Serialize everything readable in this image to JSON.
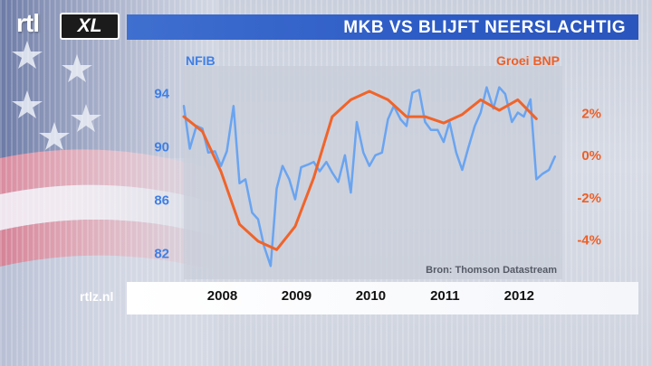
{
  "title": "MKB VS BLIJFT NEERSLACHTIG",
  "site": "rtlz.nl",
  "logo": {
    "rtl": "rtl",
    "xl": "XL"
  },
  "chart_data": {
    "type": "line",
    "x_tick_labels": [
      "2008",
      "2009",
      "2010",
      "2011",
      "2012"
    ],
    "x_ticks": [
      2008,
      2009,
      2010,
      2011,
      2012
    ],
    "xlim": [
      2007.75,
      2012.85
    ],
    "left_axis": {
      "label": "NFIB",
      "ticks": [
        82,
        86,
        90,
        94
      ],
      "ylim": [
        80,
        96
      ],
      "color": "#4a8df0"
    },
    "right_axis": {
      "label": "Groei BNP",
      "ticks": [
        2,
        0,
        -2,
        -4
      ],
      "tick_labels": [
        "2%",
        "0%",
        "-2%",
        "-4%"
      ],
      "ylim": [
        -5.9,
        4.2
      ],
      "color": "#f0642a"
    },
    "source": "Bron: Thomson Datastream",
    "series": [
      {
        "name": "NFIB",
        "axis": "left",
        "color": "#6aa4f0",
        "x": [
          2007.75,
          2007.83,
          2007.92,
          2008.0,
          2008.08,
          2008.17,
          2008.25,
          2008.33,
          2008.42,
          2008.5,
          2008.58,
          2008.67,
          2008.75,
          2008.83,
          2008.92,
          2009.0,
          2009.08,
          2009.17,
          2009.25,
          2009.33,
          2009.42,
          2009.5,
          2009.58,
          2009.67,
          2009.75,
          2009.83,
          2009.92,
          2010.0,
          2010.08,
          2010.17,
          2010.25,
          2010.33,
          2010.42,
          2010.5,
          2010.58,
          2010.67,
          2010.75,
          2010.83,
          2010.92,
          2011.0,
          2011.08,
          2011.17,
          2011.25,
          2011.33,
          2011.42,
          2011.5,
          2011.58,
          2011.67,
          2011.75,
          2011.83,
          2011.92,
          2012.0,
          2012.08,
          2012.17,
          2012.25,
          2012.33,
          2012.42,
          2012.5,
          2012.58,
          2012.67,
          2012.75
        ],
        "y": [
          93,
          89.8,
          91.5,
          91.3,
          89.5,
          89.6,
          88.5,
          89.6,
          93,
          87.2,
          87.5,
          85,
          84.5,
          82.5,
          81,
          86.8,
          88.5,
          87.5,
          86,
          88.4,
          88.6,
          88.8,
          88.1,
          88.8,
          88,
          87.3,
          89.3,
          86.5,
          91.8,
          89.5,
          88.5,
          89.3,
          89.5,
          92,
          93,
          92,
          91.5,
          94,
          94.2,
          91.8,
          91.2,
          91.2,
          90.3,
          91.8,
          89.5,
          88.2,
          89.8,
          91.5,
          92.5,
          94.4,
          92.8,
          94.4,
          93.9,
          91.8,
          92.5,
          92.2,
          93.5,
          87.5,
          87.9,
          88.2,
          89.2
        ]
      },
      {
        "name": "Groei BNP",
        "axis": "right",
        "color": "#f0642a",
        "x": [
          2007.75,
          2008.0,
          2008.25,
          2008.5,
          2008.75,
          2009.0,
          2009.25,
          2009.5,
          2009.75,
          2010.0,
          2010.25,
          2010.5,
          2010.75,
          2011.0,
          2011.25,
          2011.5,
          2011.75,
          2012.0,
          2012.25,
          2012.5
        ],
        "y": [
          1.8,
          1.1,
          -0.8,
          -3.3,
          -4.1,
          -4.5,
          -3.4,
          -1.1,
          1.8,
          2.6,
          3.0,
          2.6,
          1.8,
          1.8,
          1.5,
          1.9,
          2.6,
          2.1,
          2.6,
          1.7
        ]
      }
    ]
  }
}
